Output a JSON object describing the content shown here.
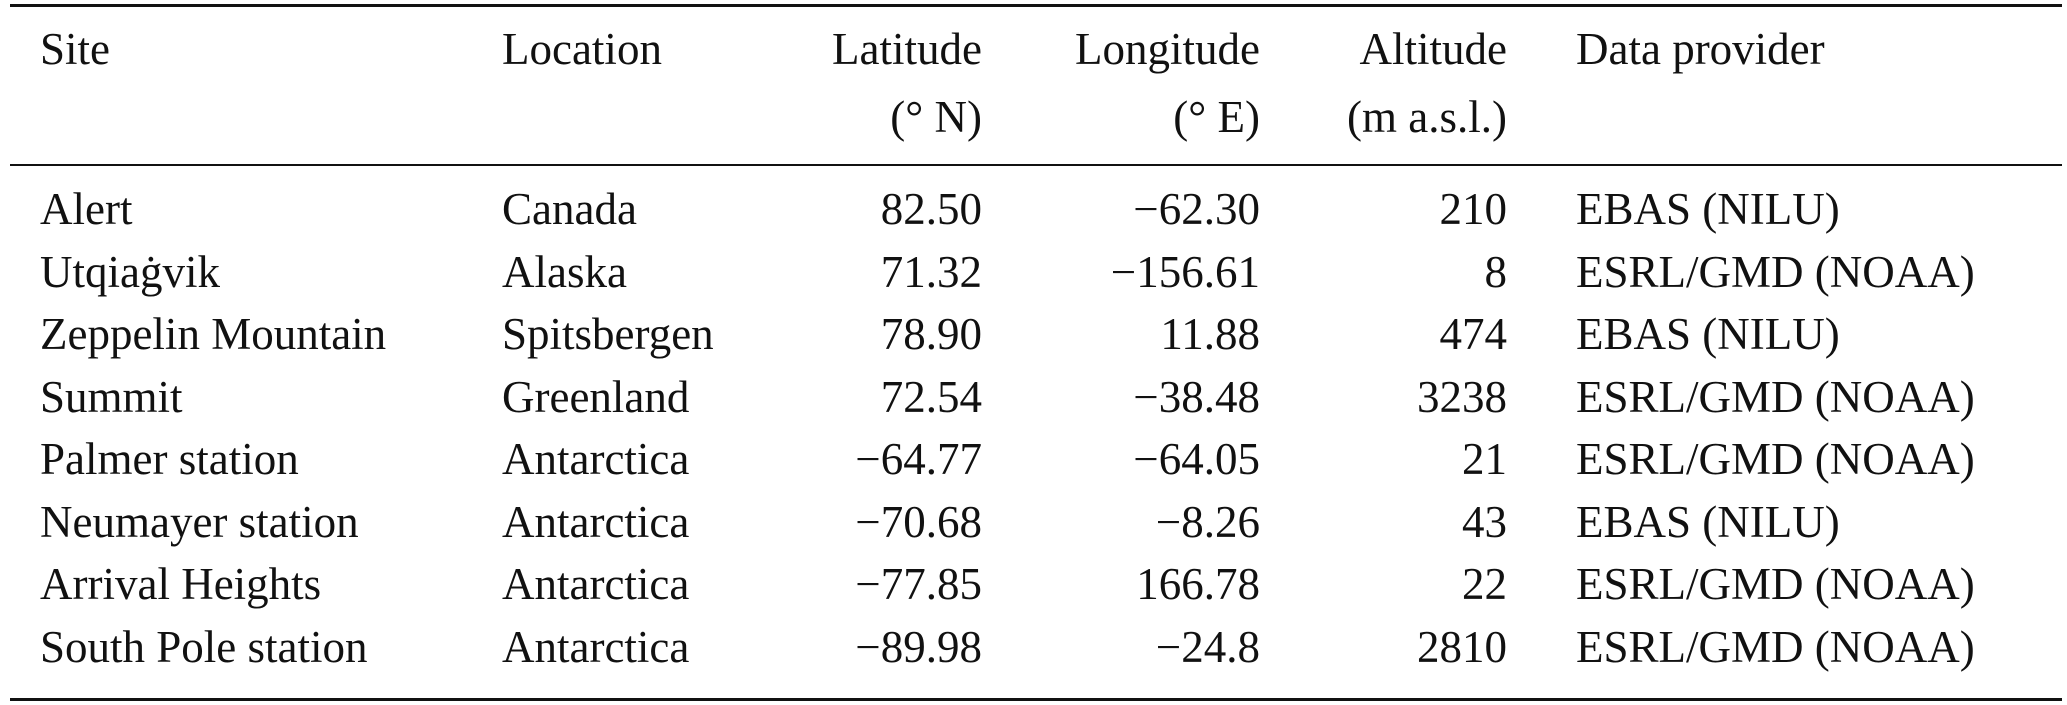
{
  "table": {
    "headers": {
      "site": "Site",
      "location": "Location",
      "latitude": [
        "Latitude",
        "(° N)"
      ],
      "longitude": [
        "Longitude",
        "(° E)"
      ],
      "altitude": [
        "Altitude",
        "(m a.s.l.)"
      ],
      "provider": "Data provider"
    },
    "rows": [
      {
        "site": "Alert",
        "location": "Canada",
        "latitude": "82.50",
        "longitude": "−62.30",
        "altitude": "210",
        "provider": "EBAS (NILU)"
      },
      {
        "site": "Utqiaġvik",
        "location": "Alaska",
        "latitude": "71.32",
        "longitude": "−156.61",
        "altitude": "8",
        "provider": "ESRL/GMD (NOAA)"
      },
      {
        "site": "Zeppelin Mountain",
        "location": "Spitsbergen",
        "latitude": "78.90",
        "longitude": "11.88",
        "altitude": "474",
        "provider": "EBAS (NILU)"
      },
      {
        "site": "Summit",
        "location": "Greenland",
        "latitude": "72.54",
        "longitude": "−38.48",
        "altitude": "3238",
        "provider": "ESRL/GMD (NOAA)"
      },
      {
        "site": "Palmer station",
        "location": "Antarctica",
        "latitude": "−64.77",
        "longitude": "−64.05",
        "altitude": "21",
        "provider": "ESRL/GMD (NOAA)"
      },
      {
        "site": "Neumayer station",
        "location": "Antarctica",
        "latitude": "−70.68",
        "longitude": "−8.26",
        "altitude": "43",
        "provider": "EBAS (NILU)"
      },
      {
        "site": "Arrival Heights",
        "location": "Antarctica",
        "latitude": "−77.85",
        "longitude": "166.78",
        "altitude": "22",
        "provider": "ESRL/GMD (NOAA)"
      },
      {
        "site": "South Pole station",
        "location": "Antarctica",
        "latitude": "−89.98",
        "longitude": "−24.8",
        "altitude": "2810",
        "provider": "ESRL/GMD (NOAA)"
      }
    ]
  }
}
